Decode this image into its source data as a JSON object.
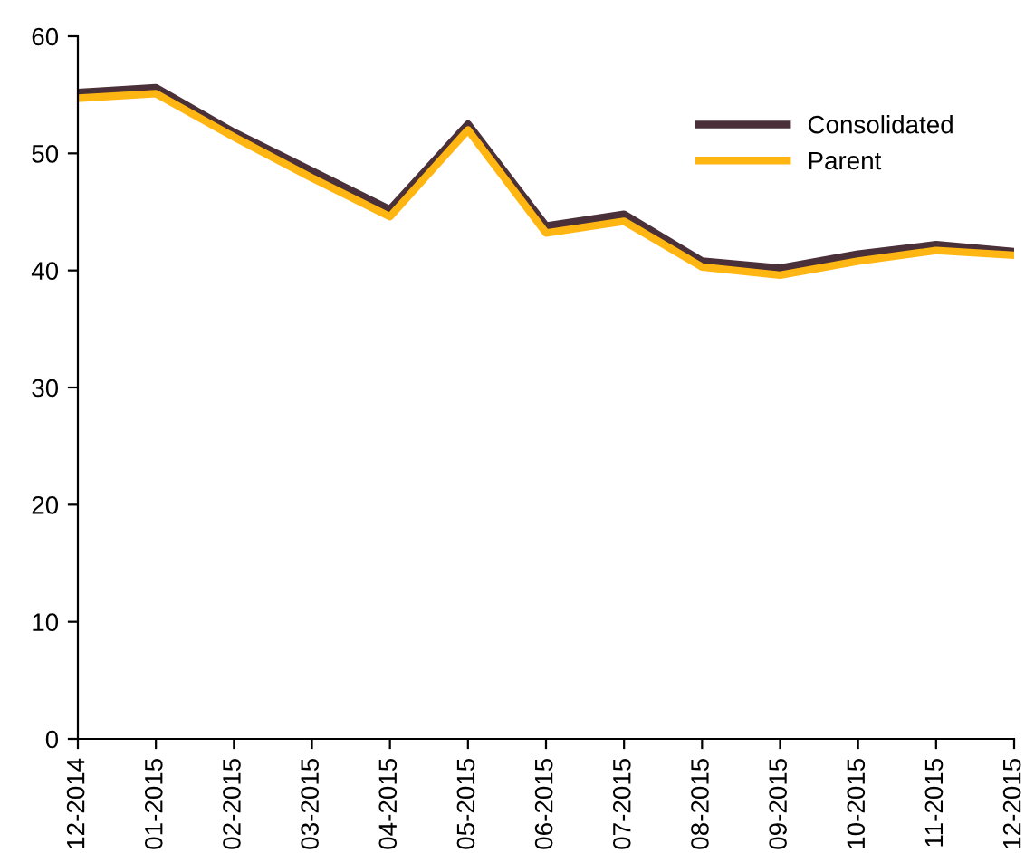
{
  "chart_data": {
    "type": "line",
    "categories": [
      "12-2014",
      "01-2015",
      "02-2015",
      "03-2015",
      "04-2015",
      "05-2015",
      "06-2015",
      "07-2015",
      "08-2015",
      "09-2015",
      "10-2015",
      "11-2015",
      "12-2015"
    ],
    "series": [
      {
        "name": "Consolidated",
        "color": "#4a3038",
        "values": [
          55.2,
          55.6,
          51.8,
          48.5,
          45.2,
          52.5,
          43.8,
          44.8,
          40.8,
          40.2,
          41.4,
          42.2,
          41.6
        ]
      },
      {
        "name": "Parent",
        "color": "#ffb612",
        "values": [
          54.7,
          55.1,
          51.4,
          47.9,
          44.6,
          52.0,
          43.2,
          44.2,
          40.3,
          39.6,
          40.8,
          41.7,
          41.3
        ]
      }
    ],
    "ylim": [
      0,
      60
    ],
    "yticks": [
      0,
      10,
      20,
      30,
      40,
      50,
      60
    ],
    "grid": false,
    "legend": "top right",
    "marker": "none",
    "line_style": "solid"
  }
}
